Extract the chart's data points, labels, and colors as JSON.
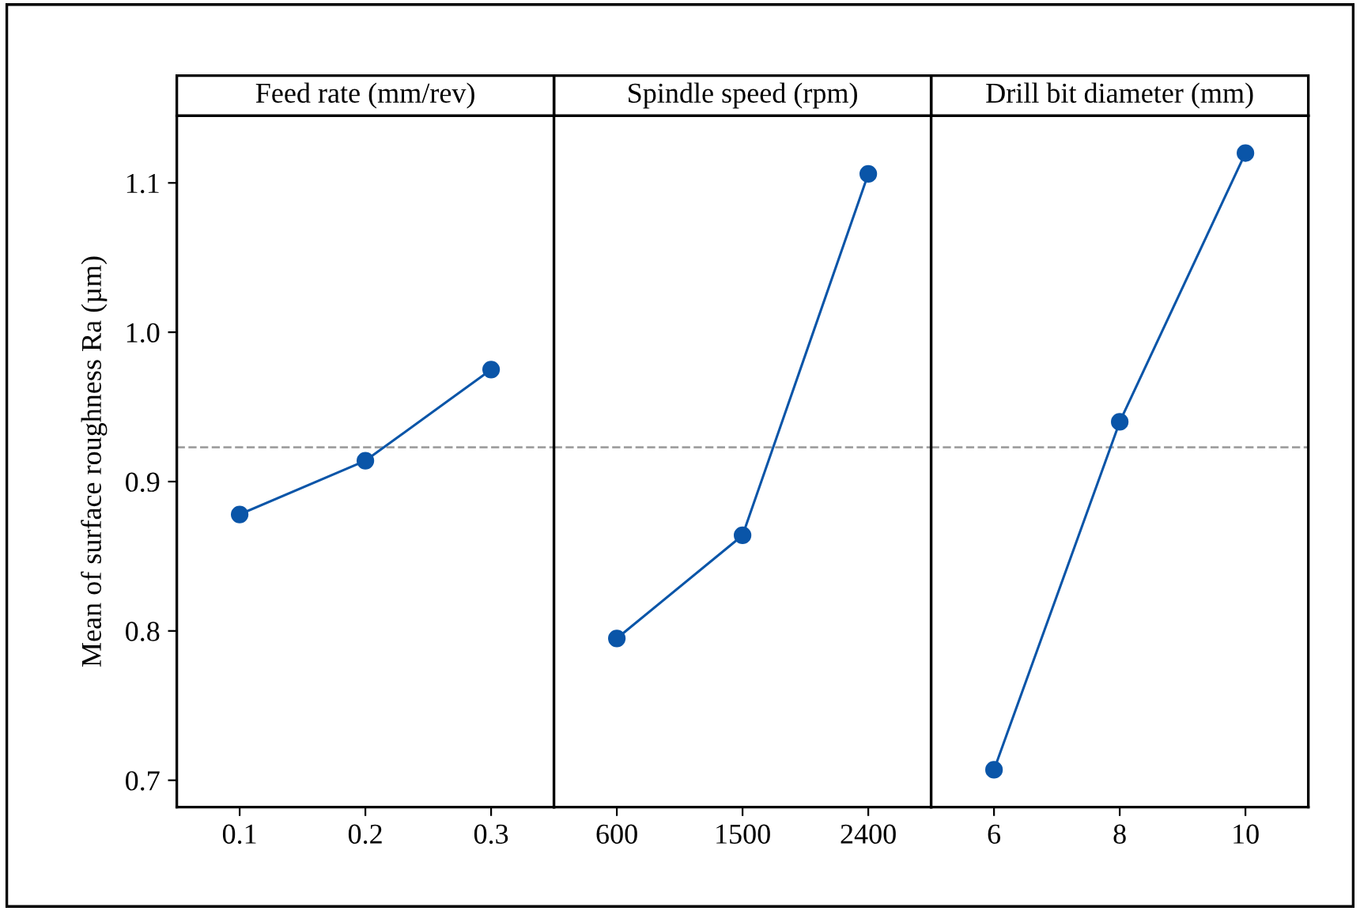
{
  "chart_data": [
    {
      "type": "line",
      "title": "Feed rate (mm/rev)",
      "ylabel": "Mean of surface roughness Ra (µm)",
      "categories": [
        "0.1",
        "0.2",
        "0.3"
      ],
      "series": [
        {
          "color": "#0a55a8",
          "values": [
            0.878,
            0.914,
            0.975
          ]
        }
      ],
      "ylim": [
        0.682,
        1.145
      ],
      "yticks": [
        0.7,
        0.8,
        0.9,
        {
          "value": 1,
          "label": "1.0"
        },
        1.1
      ],
      "marker": "circle",
      "line_style": "solid",
      "grid": false,
      "ref_lines": [
        {
          "axis": "y",
          "value": 0.923,
          "color": "#a0a0a0",
          "line_style": "dashed"
        }
      ]
    },
    {
      "type": "line",
      "title": "Spindle speed (rpm)",
      "categories": [
        "600",
        "1500",
        "2400"
      ],
      "series": [
        {
          "color": "#0a55a8",
          "values": [
            0.795,
            0.864,
            1.106
          ]
        }
      ],
      "ylim": [
        0.682,
        1.145
      ],
      "yticks": [
        0.7,
        0.8,
        0.9,
        1.0,
        1.1
      ],
      "tick_labels": "x",
      "marker": "circle",
      "line_style": "solid",
      "grid": false,
      "ref_lines": [
        {
          "axis": "y",
          "value": 0.923,
          "color": "#a0a0a0",
          "line_style": "dashed"
        }
      ]
    },
    {
      "type": "line",
      "title": "Drill bit diameter (mm)",
      "categories": [
        "6",
        "8",
        "10"
      ],
      "series": [
        {
          "color": "#0a55a8",
          "values": [
            0.707,
            0.94,
            1.12
          ]
        }
      ],
      "ylim": [
        0.682,
        1.145
      ],
      "yticks": [
        0.7,
        0.8,
        0.9,
        1.0,
        1.1
      ],
      "tick_labels": "x",
      "marker": "circle",
      "line_style": "solid",
      "grid": false,
      "ref_lines": [
        {
          "axis": "y",
          "value": 0.923,
          "color": "#a0a0a0",
          "line_style": "dashed"
        }
      ]
    }
  ]
}
